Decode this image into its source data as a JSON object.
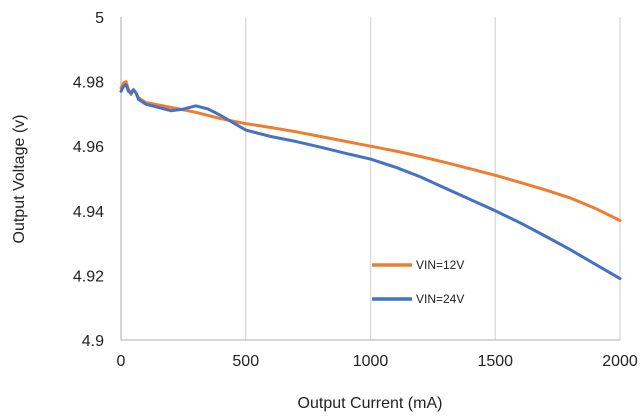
{
  "chart_data": {
    "type": "line",
    "title": "",
    "xlabel": "Output Current  (mA)",
    "ylabel": "Output Voltage (v)",
    "xlim": [
      0,
      2000
    ],
    "ylim": [
      4.9,
      5.0
    ],
    "xticks": [
      0,
      500,
      1000,
      1500,
      2000
    ],
    "xtick_labels": [
      "0",
      "500",
      "1000",
      "1500",
      "2000"
    ],
    "yticks": [
      4.9,
      4.92,
      4.94,
      4.96,
      4.98,
      5.0
    ],
    "ytick_labels": [
      "4.9",
      "4.92",
      "4.94",
      "4.96",
      "4.98",
      "5"
    ],
    "grid": "vertical",
    "legend_position": "lower-right",
    "series": [
      {
        "name": "VIN=12V",
        "color": "#ED7D31",
        "x": [
          0,
          10,
          20,
          30,
          40,
          50,
          60,
          70,
          80,
          90,
          100,
          200,
          300,
          400,
          500,
          600,
          700,
          800,
          900,
          1000,
          1100,
          1200,
          1300,
          1400,
          1500,
          1600,
          1700,
          1800,
          1900,
          2000
        ],
        "y": [
          4.978,
          4.9795,
          4.98,
          4.9775,
          4.976,
          4.9775,
          4.9765,
          4.975,
          4.9745,
          4.974,
          4.9735,
          4.972,
          4.9705,
          4.9685,
          4.967,
          4.9658,
          4.9645,
          4.963,
          4.9615,
          4.96,
          4.9585,
          4.9568,
          4.955,
          4.953,
          4.951,
          4.9488,
          4.9465,
          4.944,
          4.9408,
          4.937
        ]
      },
      {
        "name": "VIN=24V",
        "color": "#4472C4",
        "x": [
          0,
          10,
          20,
          30,
          40,
          50,
          60,
          70,
          80,
          90,
          100,
          150,
          200,
          250,
          300,
          350,
          400,
          500,
          600,
          700,
          800,
          900,
          1000,
          1100,
          1200,
          1300,
          1400,
          1500,
          1600,
          1700,
          1800,
          1900,
          2000
        ],
        "y": [
          4.977,
          4.9785,
          4.979,
          4.977,
          4.9765,
          4.9775,
          4.9765,
          4.9745,
          4.974,
          4.9735,
          4.973,
          4.972,
          4.971,
          4.9715,
          4.9725,
          4.9715,
          4.9695,
          4.965,
          4.963,
          4.9615,
          4.9597,
          4.9578,
          4.956,
          4.9535,
          4.9505,
          4.947,
          4.9435,
          4.94,
          4.9363,
          4.9322,
          4.928,
          4.9235,
          4.919
        ]
      }
    ]
  }
}
